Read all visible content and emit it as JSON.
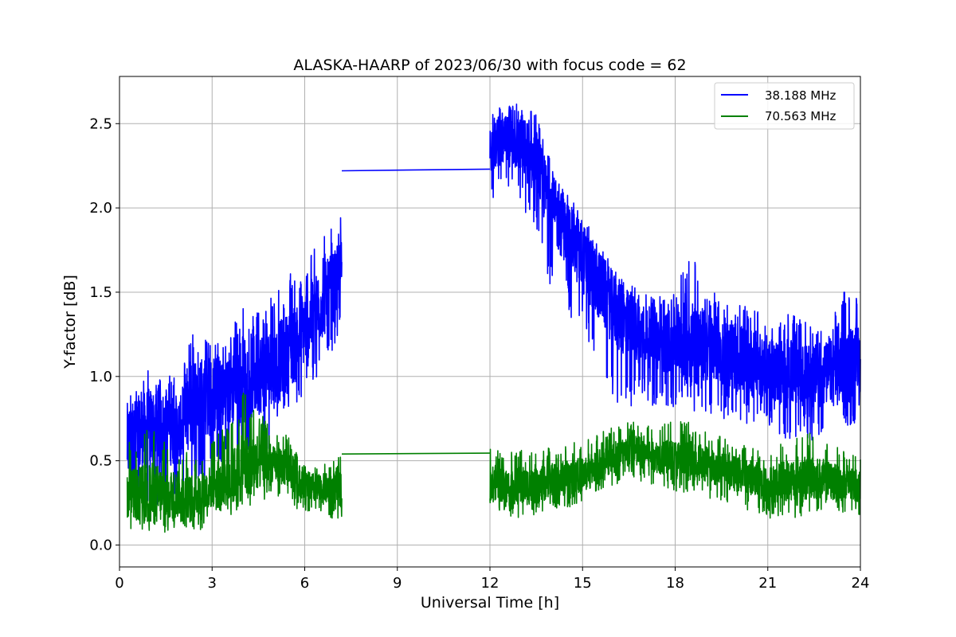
{
  "chart_data": {
    "type": "line",
    "title": "ALASKA-HAARP of 2023/06/30 with focus code = 62",
    "xlabel": "Universal Time [h]",
    "ylabel": "Y-factor [dB]",
    "xlim": [
      0,
      24
    ],
    "ylim": [
      -0.13,
      2.78
    ],
    "xticks": [
      0,
      3,
      6,
      9,
      12,
      15,
      18,
      21,
      24
    ],
    "yticks": [
      0.0,
      0.5,
      1.0,
      1.5,
      2.0,
      2.5
    ],
    "xtick_labels": [
      "0",
      "3",
      "6",
      "9",
      "12",
      "15",
      "18",
      "21",
      "24"
    ],
    "ytick_labels": [
      "0.0",
      "0.5",
      "1.0",
      "1.5",
      "2.0",
      "2.5"
    ],
    "grid": true,
    "legend_position": "top-right",
    "series": [
      {
        "name": "38.188 MHz",
        "color": "#0000ff",
        "segments": [
          {
            "x": [
              0.25,
              1.0,
              2.0,
              2.5,
              3.0,
              3.5,
              4.0,
              4.5,
              5.0,
              5.5,
              6.0,
              6.5,
              7.0,
              7.2
            ],
            "y": [
              0.6,
              0.7,
              0.68,
              0.9,
              0.88,
              0.92,
              0.98,
              1.02,
              1.05,
              1.15,
              1.3,
              1.42,
              1.55,
              1.62
            ],
            "low": [
              0.05,
              0.2,
              0.25,
              0.35,
              0.35,
              0.4,
              0.45,
              0.5,
              0.6,
              0.75,
              0.9,
              1.0,
              1.2,
              1.25
            ],
            "high": [
              0.93,
              1.05,
              1.0,
              1.38,
              1.2,
              1.22,
              1.45,
              1.4,
              1.48,
              1.62,
              1.72,
              1.8,
              1.95,
              2.0
            ]
          },
          {
            "x": [
              7.2,
              12.0
            ],
            "y": [
              2.22,
              2.23
            ]
          },
          {
            "x": [
              12.0,
              12.5,
              13.0,
              13.5,
              14.0,
              14.5,
              15.0,
              15.5,
              16.0,
              16.5,
              17.0,
              17.5,
              18.0,
              18.5,
              19.0,
              19.5,
              20.0,
              20.5,
              21.0,
              21.5,
              22.0,
              22.5,
              23.0,
              23.5,
              24.0
            ],
            "y": [
              2.35,
              2.4,
              2.38,
              2.25,
              2.0,
              1.85,
              1.7,
              1.55,
              1.4,
              1.3,
              1.25,
              1.2,
              1.22,
              1.2,
              1.18,
              1.15,
              1.12,
              1.08,
              1.05,
              1.02,
              1.0,
              1.0,
              1.02,
              1.05,
              1.1
            ],
            "low": [
              2.05,
              2.1,
              2.0,
              1.85,
              1.5,
              1.4,
              1.2,
              1.05,
              0.85,
              0.8,
              0.85,
              0.8,
              0.8,
              0.8,
              0.78,
              0.75,
              0.75,
              0.7,
              0.7,
              0.62,
              0.65,
              0.6,
              0.65,
              0.68,
              0.7
            ],
            "high": [
              2.55,
              2.62,
              2.64,
              2.55,
              2.25,
              2.1,
              1.98,
              1.8,
              1.65,
              1.55,
              1.5,
              1.48,
              1.5,
              1.78,
              1.55,
              1.45,
              1.5,
              1.45,
              1.3,
              1.4,
              1.35,
              1.3,
              1.35,
              1.52,
              1.45
            ]
          }
        ]
      },
      {
        "name": "70.563 MHz",
        "color": "#008000",
        "segments": [
          {
            "x": [
              0.25,
              1.0,
              2.0,
              2.5,
              3.0,
              3.5,
              4.0,
              4.5,
              5.0,
              5.5,
              6.0,
              6.5,
              7.0,
              7.2
            ],
            "y": [
              0.3,
              0.3,
              0.3,
              0.28,
              0.35,
              0.38,
              0.45,
              0.5,
              0.48,
              0.45,
              0.35,
              0.33,
              0.34,
              0.33
            ],
            "low": [
              0.1,
              0.02,
              0.12,
              0.05,
              0.15,
              0.18,
              0.18,
              0.25,
              0.3,
              0.25,
              0.18,
              0.15,
              0.15,
              0.15
            ],
            "high": [
              0.6,
              0.72,
              0.6,
              0.5,
              0.62,
              0.72,
              0.95,
              0.82,
              0.68,
              0.65,
              0.5,
              0.48,
              0.5,
              0.55
            ]
          },
          {
            "x": [
              7.2,
              12.0
            ],
            "y": [
              0.54,
              0.545
            ]
          },
          {
            "x": [
              12.0,
              12.5,
              13.0,
              13.5,
              14.0,
              14.5,
              15.0,
              15.5,
              16.0,
              16.5,
              17.0,
              17.5,
              18.0,
              18.5,
              19.0,
              19.5,
              20.0,
              20.5,
              21.0,
              21.5,
              22.0,
              22.5,
              23.0,
              23.5,
              24.0
            ],
            "y": [
              0.38,
              0.35,
              0.35,
              0.35,
              0.38,
              0.4,
              0.42,
              0.48,
              0.52,
              0.55,
              0.55,
              0.52,
              0.5,
              0.5,
              0.48,
              0.45,
              0.42,
              0.4,
              0.35,
              0.38,
              0.4,
              0.4,
              0.38,
              0.35,
              0.35
            ],
            "low": [
              0.2,
              0.18,
              0.15,
              0.18,
              0.2,
              0.22,
              0.25,
              0.3,
              0.35,
              0.38,
              0.35,
              0.35,
              0.32,
              0.3,
              0.28,
              0.25,
              0.22,
              0.2,
              0.15,
              0.18,
              0.15,
              0.2,
              0.2,
              0.15,
              0.18
            ],
            "high": [
              0.58,
              0.55,
              0.58,
              0.56,
              0.58,
              0.6,
              0.62,
              0.66,
              0.7,
              0.74,
              0.72,
              0.7,
              0.78,
              0.72,
              0.68,
              0.64,
              0.6,
              0.58,
              0.55,
              0.62,
              0.64,
              0.68,
              0.62,
              0.55,
              0.52
            ]
          }
        ]
      }
    ]
  }
}
